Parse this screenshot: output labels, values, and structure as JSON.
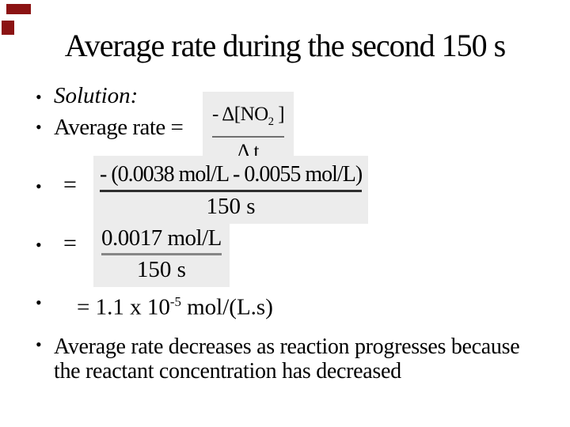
{
  "slide": {
    "title": "Average rate during the second 150 s",
    "bullet_glyph": "•",
    "accent_color": "#8b1313"
  },
  "bullets": {
    "solution": "Solution:",
    "average_rate": "Average rate =",
    "equals": "=",
    "result_prefix": "= 1.1 x 10",
    "result_exponent": "-5",
    "result_suffix": " mol/(L.s)",
    "conclusion": "Average rate decreases as reaction progresses because the reactant concentration has decreased"
  },
  "equations": {
    "rate_definition": {
      "numerator_main": "- Δ[NO",
      "numerator_sub": "2",
      "numerator_close": " ]",
      "denominator": "Δ t"
    },
    "substitution": {
      "numerator": "- (0.0038 mol/L - 0.0055 mol/L)",
      "denominator": "150 s"
    },
    "simplified": {
      "numerator": "0.0017 mol/L",
      "denominator": "150 s"
    }
  }
}
